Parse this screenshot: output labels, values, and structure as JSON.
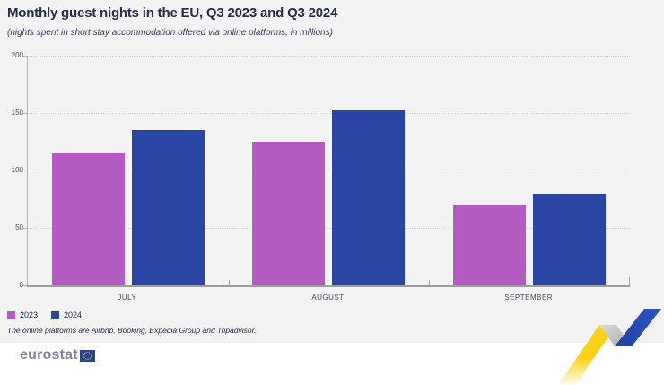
{
  "header": {
    "title": "Monthly guest nights in the EU, Q3 2023 and Q3 2024",
    "subtitle": "(nights spent in short stay accommodation offered via online platforms, in millions)"
  },
  "chart_data": {
    "type": "bar",
    "title": "Monthly guest nights in the EU, Q3 2023 and Q3 2024",
    "subtitle": "(nights spent in short stay accommodation offered via online platforms, in millions)",
    "categories": [
      "JULY",
      "AUGUST",
      "SEPTEMBER"
    ],
    "series": [
      {
        "name": "2023",
        "color": "#b45bc1",
        "values": [
          116,
          125,
          70
        ]
      },
      {
        "name": "2024",
        "color": "#2a46a5",
        "values": [
          135,
          152,
          80
        ]
      }
    ],
    "ylim": [
      0,
      200
    ],
    "yticks": [
      0,
      50,
      100,
      150,
      200
    ],
    "grid": "horizontal-dotted",
    "legend_position": "bottom-left"
  },
  "footnote": "The online platforms are Airbnb, Booking, Expedia Group and Tripadvisor.",
  "logo": {
    "text": "eurostat"
  }
}
